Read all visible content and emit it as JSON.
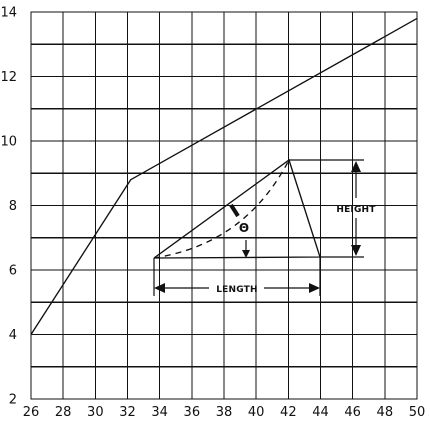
{
  "chart_data": {
    "type": "line",
    "title": "",
    "xlabel": "",
    "ylabel": "",
    "xlim": [
      26,
      50
    ],
    "ylim": [
      2,
      14
    ],
    "x_ticks": [
      "26",
      "28",
      "30",
      "32",
      "34",
      "36",
      "38",
      "40",
      "42",
      "44",
      "46",
      "48",
      "50"
    ],
    "y_ticks": [
      "2",
      "4",
      "6",
      "8",
      "10",
      "12",
      "14"
    ],
    "grid": true,
    "series": [
      {
        "x": [
          26,
          32.2,
          50
        ],
        "y": [
          4.0,
          8.8,
          13.8
        ]
      }
    ]
  },
  "inset": {
    "height_label": "HEIGHT",
    "length_label": "LENGTH",
    "angle_label": "Θ"
  }
}
